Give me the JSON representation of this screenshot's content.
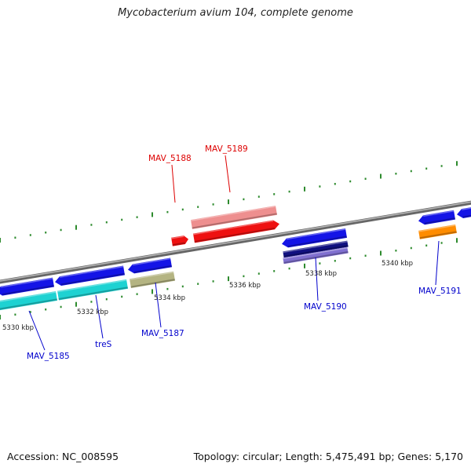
{
  "title": "Mycobacterium avium 104, complete genome",
  "footer": {
    "accession": "Accession: NC_008595",
    "topology": "Topology: circular; Length: 5,475,491 bp; Genes: 5,170"
  },
  "colors": {
    "backbone": "#888888",
    "tick": "#2e8b2e",
    "label_forward": "#dd0000",
    "label_reverse": "#0000cc",
    "gene_blue": "#1414e6",
    "gene_cyan": "#1ed2d2",
    "gene_olive": "#b4b482",
    "gene_red": "#ee1111",
    "gene_pink": "#ee8f8f",
    "gene_navy": "#101080",
    "gene_purple": "#8070d0",
    "gene_orange": "#ff8c00"
  },
  "scale_labels": [
    "5330 kbp",
    "5332 kbp",
    "5334 kbp",
    "5336 kbp",
    "5338 kbp",
    "5340 kbp"
  ],
  "gene_labels": [
    {
      "id": "MAV_5188",
      "strand": "forward"
    },
    {
      "id": "MAV_5189",
      "strand": "forward"
    },
    {
      "id": "MAV_5190",
      "strand": "reverse"
    },
    {
      "id": "MAV_5191",
      "strand": "reverse"
    },
    {
      "id": "MAV_5185",
      "strand": "reverse"
    },
    {
      "id": "treS",
      "strand": "reverse"
    },
    {
      "id": "MAV_5187",
      "strand": "reverse"
    }
  ]
}
